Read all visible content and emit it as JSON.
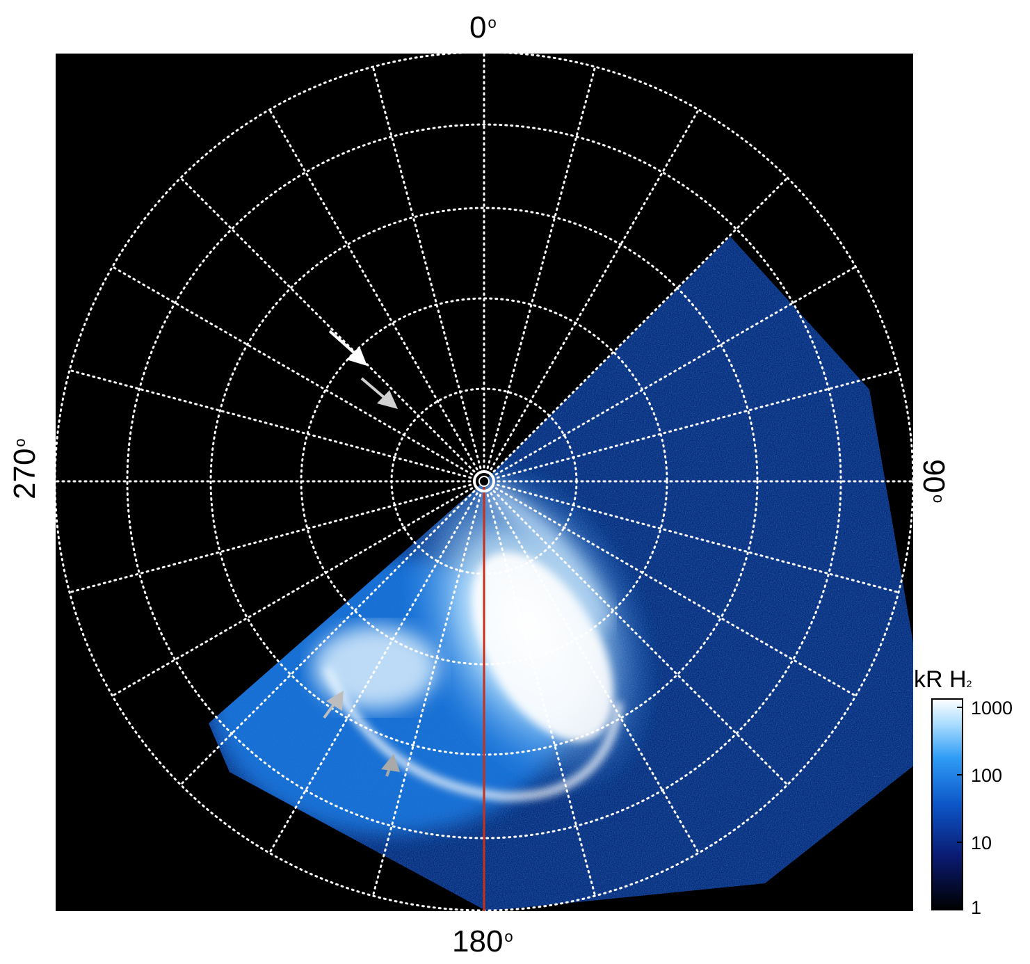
{
  "labels": {
    "top": "0",
    "bottom": "180",
    "left": "270",
    "right": "90",
    "degree_symbol": "o"
  },
  "colorbar": {
    "title_main": "kR H",
    "title_sub": "2",
    "ticks": [
      "1000",
      "100",
      "10",
      "1"
    ]
  },
  "colors": {
    "background": "#000000",
    "grid": "#ffffff",
    "meridian_line": "#c8301a",
    "aurora_low": "#0a2a80",
    "aurora_mid": "#1b7fe8",
    "aurora_high": "#ffffff",
    "arrow_white": "#ffffff",
    "arrow_gray": "#bdbdbd"
  },
  "icons": [
    "white-arrow-icon",
    "gray-arrow-icon"
  ]
}
